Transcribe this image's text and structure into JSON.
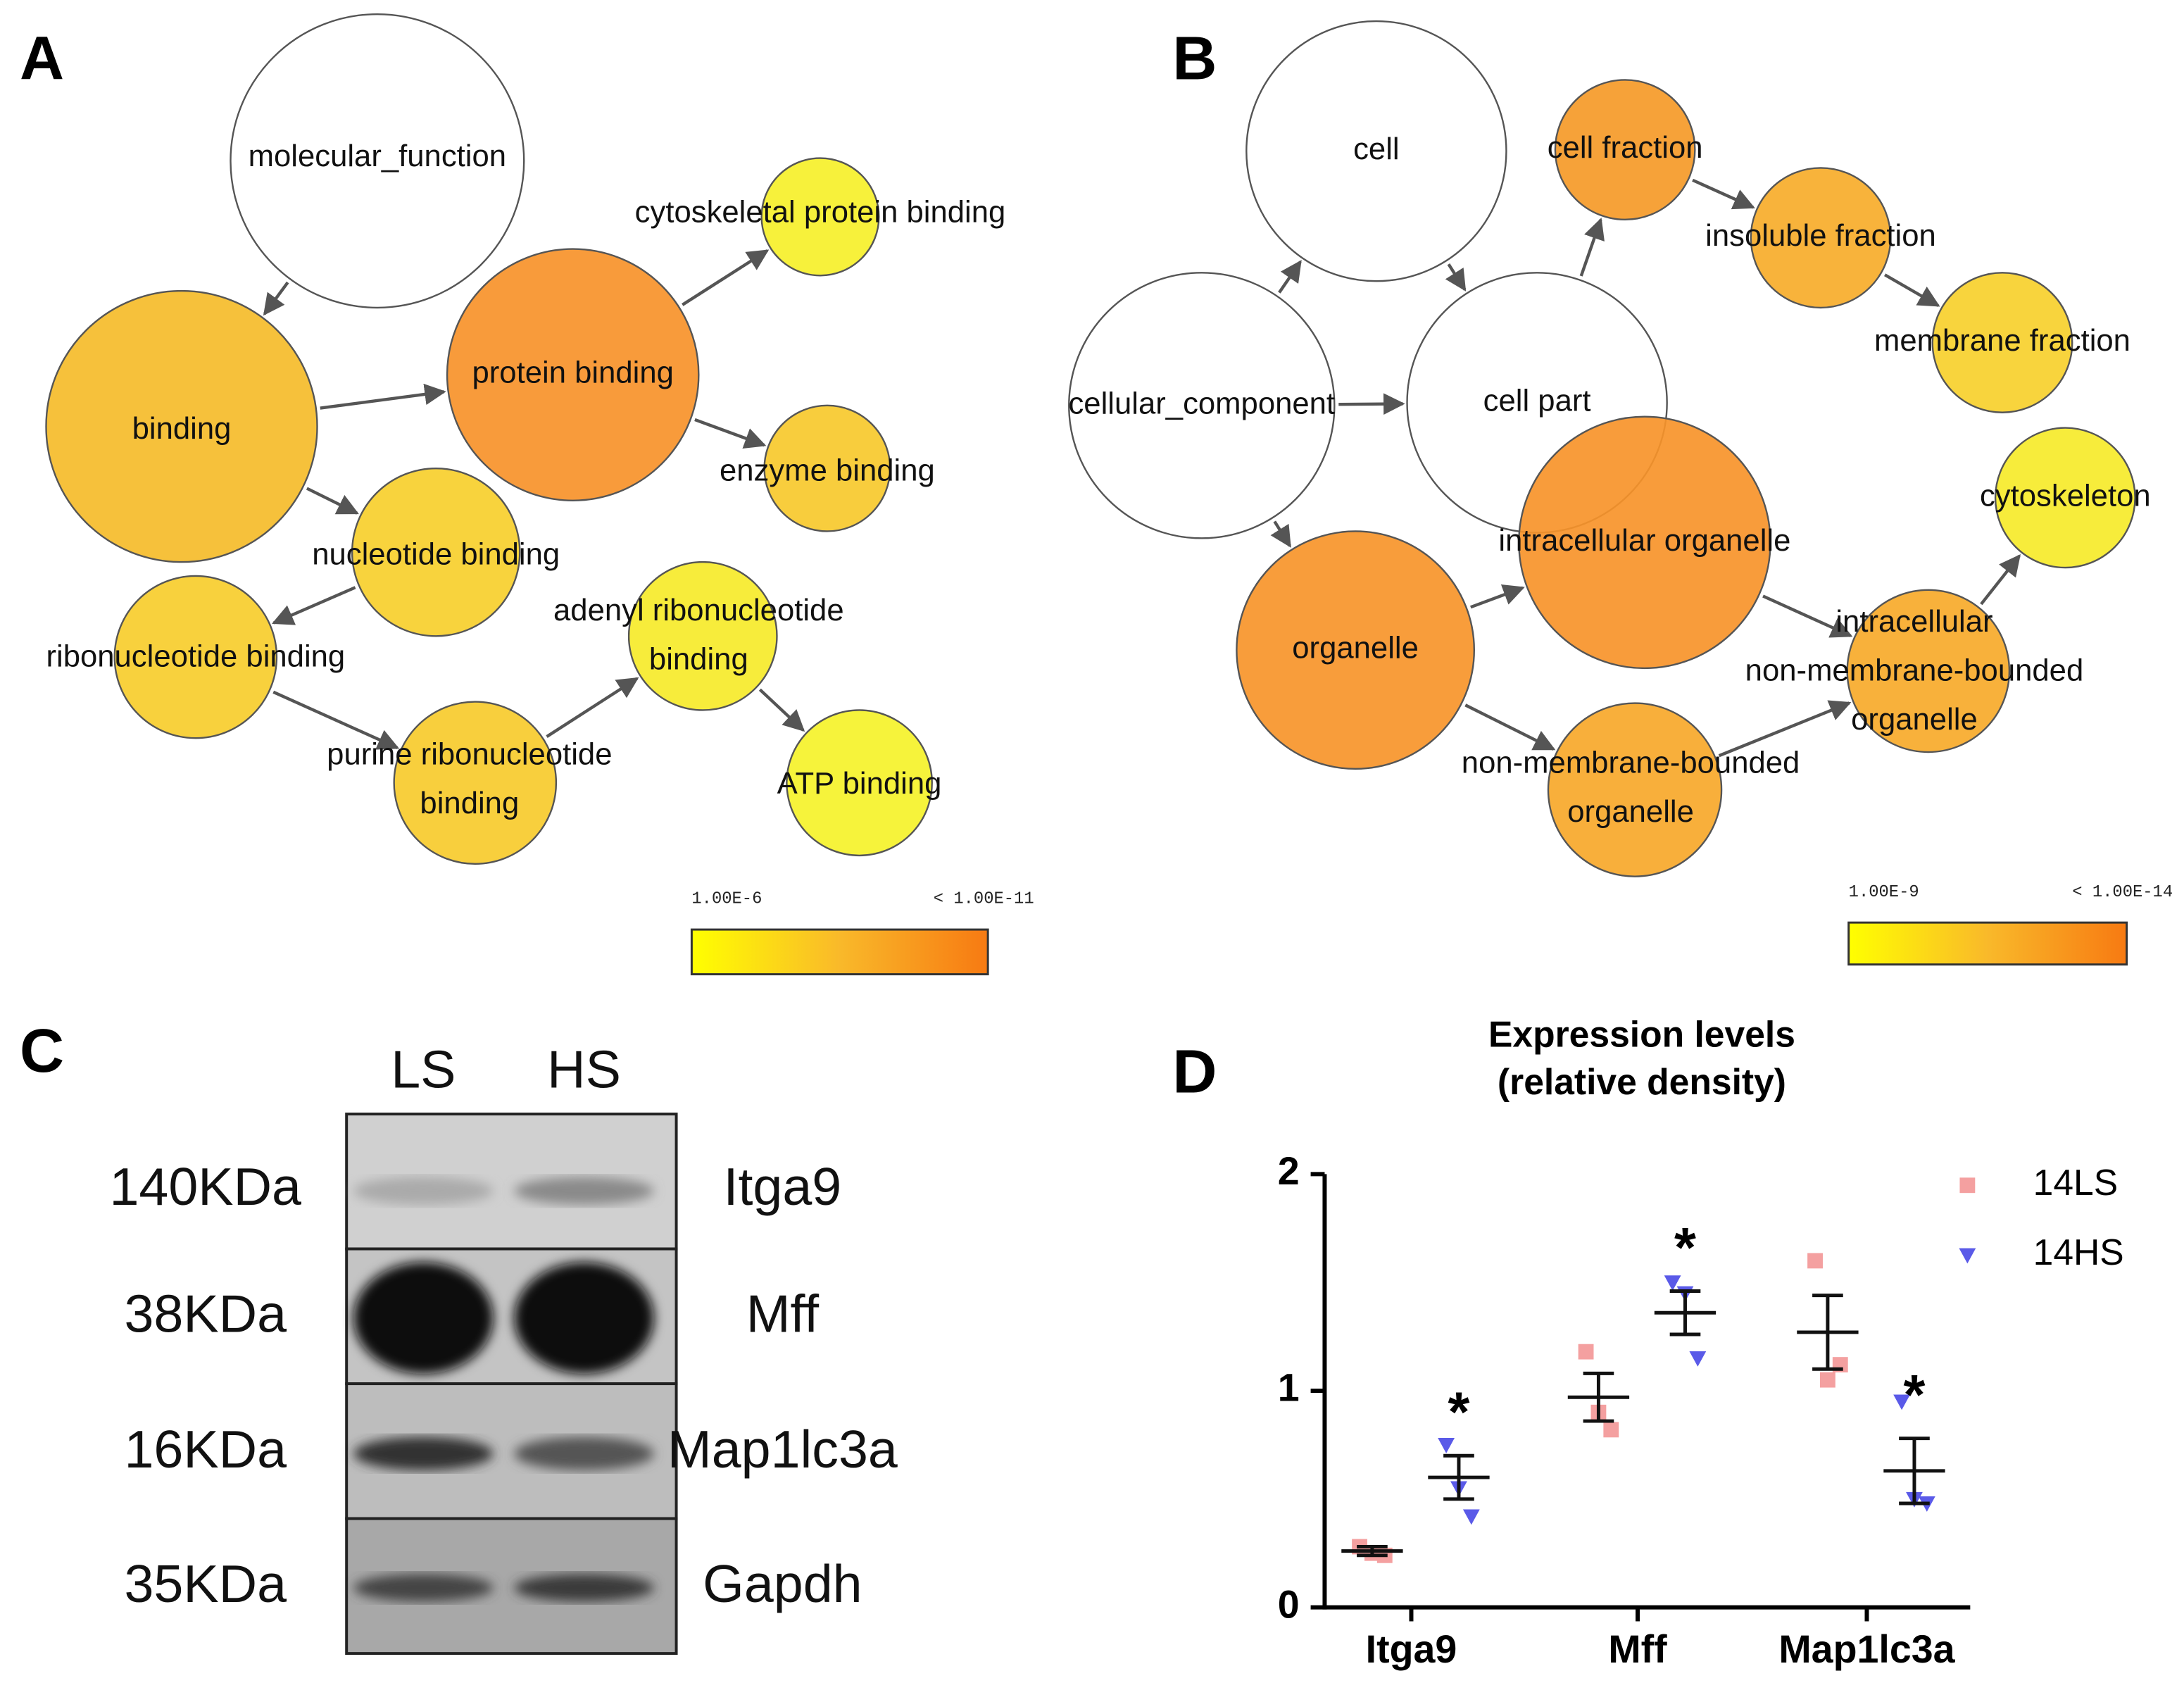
{
  "panel_labels": [
    "A",
    "B",
    "C",
    "D"
  ],
  "network_a": {
    "nodes": [
      {
        "label": [
          "molecular_function"
        ]
      },
      {
        "label": [
          "binding"
        ]
      },
      {
        "label": [
          "protein binding"
        ]
      },
      {
        "label": [
          "cytoskeletal protein binding"
        ]
      },
      {
        "label": [
          "enzyme binding"
        ]
      },
      {
        "label": [
          "nucleotide binding"
        ]
      },
      {
        "label": [
          "ribonucleotide binding"
        ]
      },
      {
        "label": [
          "adenyl ribonucleotide",
          "binding"
        ]
      },
      {
        "label": [
          "purine ribonucleotide",
          "binding"
        ]
      },
      {
        "label": [
          "ATP binding"
        ]
      }
    ],
    "legend": {
      "min_label": "1.00E-6",
      "max_label": "< 1.00E-11"
    }
  },
  "network_b": {
    "nodes": [
      {
        "label": [
          "cell"
        ]
      },
      {
        "label": [
          "cellular_component"
        ]
      },
      {
        "label": [
          "cell part"
        ]
      },
      {
        "label": [
          "cell fraction"
        ]
      },
      {
        "label": [
          "insoluble fraction"
        ]
      },
      {
        "label": [
          "membrane fraction"
        ]
      },
      {
        "label": [
          "cytoskeleton"
        ]
      },
      {
        "label": [
          "intracellular organelle"
        ]
      },
      {
        "label": [
          "organelle"
        ]
      },
      {
        "label": [
          "intracellular",
          "non-membrane-bounded",
          "organelle"
        ]
      },
      {
        "label": [
          "non-membrane-bounded",
          "organelle"
        ]
      }
    ],
    "legend": {
      "min_label": "1.00E-9",
      "max_label": "< 1.00E-14"
    }
  },
  "blot": {
    "lanes": [
      "LS",
      "HS"
    ],
    "rows": [
      {
        "size": "140KDa",
        "protein": "Itga9"
      },
      {
        "size": "38KDa",
        "protein": "Mff"
      },
      {
        "size": "16KDa",
        "protein": "Map1lc3a"
      },
      {
        "size": "35KDa",
        "protein": "Gapdh"
      }
    ]
  },
  "chart_data": {
    "type": "dotplot",
    "title": "Expression levels",
    "subtitle": "(relative density)",
    "categories": [
      "Itga9",
      "Mff",
      "Map1lc3a"
    ],
    "ylim": [
      0,
      2
    ],
    "yticks": [
      0,
      1,
      2
    ],
    "series": [
      {
        "name": "14LS",
        "color": "#f4a0a0",
        "marker": "square",
        "values": [
          0.26,
          0.97,
          1.27
        ],
        "errors": [
          0.02,
          0.11,
          0.17
        ],
        "points": [
          [
            0.28,
            0.25,
            0.24
          ],
          [
            1.18,
            0.9,
            0.82
          ],
          [
            1.6,
            1.05,
            1.12
          ]
        ]
      },
      {
        "name": "14HS",
        "color": "#5a5ae8",
        "marker": "triangle",
        "values": [
          0.6,
          1.36,
          0.63
        ],
        "errors": [
          0.1,
          0.1,
          0.15
        ],
        "points": [
          [
            0.75,
            0.55,
            0.42
          ],
          [
            1.5,
            1.45,
            1.15
          ],
          [
            0.95,
            0.5,
            0.48
          ]
        ],
        "significance": [
          "*",
          "*",
          "*"
        ]
      }
    ]
  }
}
